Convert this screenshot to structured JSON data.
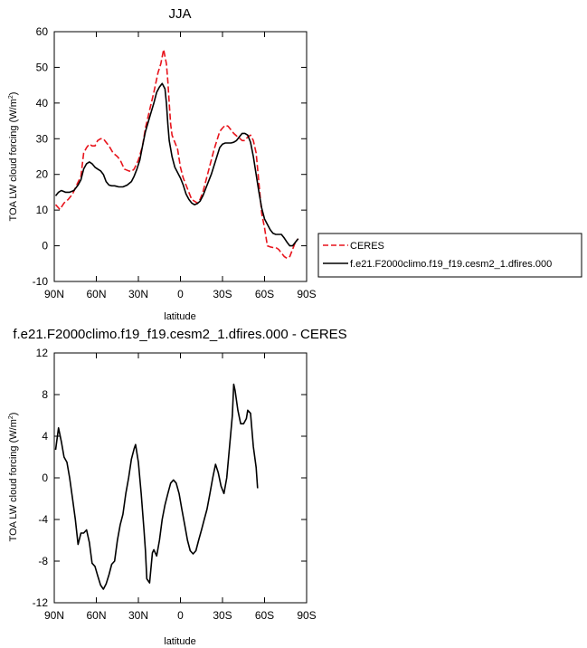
{
  "chart_data": [
    {
      "type": "line",
      "title": "JJA",
      "xlabel": "latitude",
      "ylabel": "TOA LW cloud forcing (W/m",
      "ylabel_sup": "2",
      "ylabel_close": ")",
      "xlim": [
        -90,
        90
      ],
      "ylim": [
        -10,
        60
      ],
      "x_ticks": [
        -90,
        -60,
        -30,
        0,
        30,
        60,
        90
      ],
      "x_tick_labels": [
        "90N",
        "60N",
        "30N",
        "0",
        "30S",
        "60S",
        "90S"
      ],
      "y_ticks": [
        -10,
        0,
        10,
        20,
        30,
        40,
        50,
        60
      ],
      "y_tick_labels": [
        "-10",
        "0",
        "10",
        "20",
        "30",
        "40",
        "50",
        "60"
      ],
      "grid": false,
      "legend_position": "right",
      "series": [
        {
          "name": "CERES",
          "color": "#e8141c",
          "dash": true,
          "points": [
            [
              -89,
              11.5
            ],
            [
              -86,
              10.2
            ],
            [
              -83,
              12
            ],
            [
              -80,
              13
            ],
            [
              -77,
              14.5
            ],
            [
              -74,
              17
            ],
            [
              -71,
              19.5
            ],
            [
              -69,
              26
            ],
            [
              -67,
              27.5
            ],
            [
              -65,
              28.5
            ],
            [
              -63,
              28
            ],
            [
              -61,
              28
            ],
            [
              -59,
              29.5
            ],
            [
              -57,
              30
            ],
            [
              -55,
              30
            ],
            [
              -53,
              29
            ],
            [
              -51,
              28
            ],
            [
              -48,
              26
            ],
            [
              -45,
              25
            ],
            [
              -43,
              24
            ],
            [
              -40,
              21.5
            ],
            [
              -37,
              21
            ],
            [
              -35,
              20.8
            ],
            [
              -33,
              21.5
            ],
            [
              -30,
              24
            ],
            [
              -27,
              28
            ],
            [
              -25,
              33
            ],
            [
              -22,
              38
            ],
            [
              -19,
              43
            ],
            [
              -16,
              48.5
            ],
            [
              -14,
              51
            ],
            [
              -12,
              55
            ],
            [
              -10,
              51
            ],
            [
              -9,
              46
            ],
            [
              -8,
              40
            ],
            [
              -7,
              34
            ],
            [
              -6,
              31
            ],
            [
              -4,
              29
            ],
            [
              -2,
              27
            ],
            [
              0,
              22
            ],
            [
              2,
              19
            ],
            [
              4,
              17
            ],
            [
              6,
              15
            ],
            [
              8,
              13
            ],
            [
              10,
              12.5
            ],
            [
              12,
              12
            ],
            [
              14,
              13
            ],
            [
              16,
              15
            ],
            [
              18,
              18
            ],
            [
              20,
              21
            ],
            [
              22,
              24
            ],
            [
              24,
              27
            ],
            [
              26,
              29.5
            ],
            [
              28,
              32
            ],
            [
              30,
              33
            ],
            [
              32,
              33.8
            ],
            [
              34,
              33.5
            ],
            [
              36,
              32.5
            ],
            [
              38,
              31.5
            ],
            [
              40,
              30.8
            ],
            [
              42,
              30.2
            ],
            [
              44,
              29.5
            ],
            [
              46,
              29.5
            ],
            [
              48,
              30.5
            ],
            [
              50,
              31
            ],
            [
              52,
              29.5
            ],
            [
              54,
              26
            ],
            [
              56,
              17.5
            ],
            [
              58,
              9
            ],
            [
              60,
              5
            ],
            [
              62,
              0
            ],
            [
              64,
              -0.3
            ],
            [
              66,
              -0.5
            ],
            [
              68,
              -0.5
            ],
            [
              70,
              -1
            ],
            [
              72,
              -2
            ],
            [
              74,
              -3
            ],
            [
              76,
              -3.5
            ],
            [
              78,
              -3
            ],
            [
              80,
              -1
            ],
            [
              82,
              1
            ],
            [
              84,
              2
            ]
          ]
        },
        {
          "name": "f.e21.F2000climo.f19_f19.cesm2_1.dfires.000",
          "color": "#000000",
          "dash": false,
          "points": [
            [
              -89,
              14
            ],
            [
              -87,
              15
            ],
            [
              -85,
              15.5
            ],
            [
              -82,
              15
            ],
            [
              -79,
              15
            ],
            [
              -76,
              15.5
            ],
            [
              -73,
              17
            ],
            [
              -71,
              18.5
            ],
            [
              -69,
              21.5
            ],
            [
              -67,
              23
            ],
            [
              -65,
              23.5
            ],
            [
              -63,
              23
            ],
            [
              -61,
              22
            ],
            [
              -59,
              21.5
            ],
            [
              -57,
              21
            ],
            [
              -55,
              20
            ],
            [
              -53,
              18
            ],
            [
              -51,
              17
            ],
            [
              -49,
              16.8
            ],
            [
              -47,
              16.8
            ],
            [
              -44,
              16.5
            ],
            [
              -41,
              16.5
            ],
            [
              -38,
              17
            ],
            [
              -35,
              18
            ],
            [
              -33,
              19.5
            ],
            [
              -31,
              21.5
            ],
            [
              -29,
              24
            ],
            [
              -27,
              28
            ],
            [
              -25,
              32
            ],
            [
              -22,
              36
            ],
            [
              -19,
              40
            ],
            [
              -17,
              43
            ],
            [
              -15,
              44.5
            ],
            [
              -13,
              45.5
            ],
            [
              -11,
              44
            ],
            [
              -10,
              40
            ],
            [
              -9,
              34
            ],
            [
              -8,
              29.5
            ],
            [
              -6,
              25
            ],
            [
              -4,
              22
            ],
            [
              -2,
              20.5
            ],
            [
              0,
              19
            ],
            [
              2,
              17
            ],
            [
              4,
              14.5
            ],
            [
              6,
              13
            ],
            [
              8,
              12
            ],
            [
              10,
              11.5
            ],
            [
              12,
              11.8
            ],
            [
              14,
              12.5
            ],
            [
              16,
              14
            ],
            [
              18,
              16
            ],
            [
              20,
              18
            ],
            [
              22,
              20
            ],
            [
              24,
              22.5
            ],
            [
              26,
              25
            ],
            [
              28,
              27.5
            ],
            [
              30,
              28.5
            ],
            [
              32,
              28.8
            ],
            [
              34,
              28.8
            ],
            [
              36,
              28.8
            ],
            [
              38,
              29
            ],
            [
              40,
              29.5
            ],
            [
              42,
              30.5
            ],
            [
              44,
              31.5
            ],
            [
              46,
              31.5
            ],
            [
              48,
              31
            ],
            [
              50,
              29
            ],
            [
              52,
              25
            ],
            [
              54,
              20
            ],
            [
              56,
              15
            ],
            [
              58,
              10.5
            ],
            [
              60,
              7.5
            ],
            [
              62,
              6
            ],
            [
              64,
              4.5
            ],
            [
              66,
              3.5
            ],
            [
              68,
              3.2
            ],
            [
              70,
              3.2
            ],
            [
              72,
              3.2
            ],
            [
              74,
              2.2
            ],
            [
              76,
              1
            ],
            [
              78,
              0
            ],
            [
              80,
              0
            ],
            [
              82,
              1
            ],
            [
              84,
              2
            ]
          ]
        }
      ],
      "legend": {
        "entries": [
          "CERES",
          "f.e21.F2000climo.f19_f19.cesm2_1.dfires.000"
        ]
      }
    },
    {
      "type": "line",
      "title": "f.e21.F2000climo.f19_f19.cesm2_1.dfires.000 - CERES",
      "xlabel": "latitude",
      "ylabel": "TOA LW cloud forcing (W/m",
      "ylabel_sup": "2",
      "ylabel_close": ")",
      "xlim": [
        -90,
        90
      ],
      "ylim": [
        -12,
        12
      ],
      "x_ticks": [
        -90,
        -60,
        -30,
        0,
        30,
        60,
        90
      ],
      "x_tick_labels": [
        "90N",
        "60N",
        "30N",
        "0",
        "30S",
        "60S",
        "90S"
      ],
      "y_ticks": [
        -12,
        -8,
        -4,
        0,
        4,
        8,
        12
      ],
      "y_tick_labels": [
        "-12",
        "-8",
        "-4",
        "0",
        "4",
        "8",
        "12"
      ],
      "grid": false,
      "series": [
        {
          "name": "",
          "color": "#000000",
          "dash": false,
          "points": [
            [
              -89,
              2.7
            ],
            [
              -87,
              4.8
            ],
            [
              -85,
              3.5
            ],
            [
              -83,
              2
            ],
            [
              -81,
              1.5
            ],
            [
              -79,
              0
            ],
            [
              -77,
              -2
            ],
            [
              -75,
              -4
            ],
            [
              -73,
              -6.4
            ],
            [
              -71,
              -5.3
            ],
            [
              -69,
              -5.3
            ],
            [
              -67,
              -5
            ],
            [
              -65,
              -6.2
            ],
            [
              -63,
              -8.2
            ],
            [
              -61,
              -8.5
            ],
            [
              -59,
              -9.4
            ],
            [
              -57,
              -10.3
            ],
            [
              -55,
              -10.7
            ],
            [
              -53,
              -10.2
            ],
            [
              -51,
              -9.3
            ],
            [
              -49,
              -8.3
            ],
            [
              -47,
              -8
            ],
            [
              -45,
              -6
            ],
            [
              -43,
              -4.5
            ],
            [
              -41,
              -3.5
            ],
            [
              -39,
              -1.5
            ],
            [
              -37,
              0
            ],
            [
              -35,
              1.8
            ],
            [
              -33,
              2.8
            ],
            [
              -32,
              3.2
            ],
            [
              -30,
              1.5
            ],
            [
              -28,
              -1.5
            ],
            [
              -26,
              -5
            ],
            [
              -25,
              -7
            ],
            [
              -24,
              -9.7
            ],
            [
              -22,
              -10.1
            ],
            [
              -20,
              -7.2
            ],
            [
              -19,
              -6.9
            ],
            [
              -17,
              -7.5
            ],
            [
              -15,
              -6
            ],
            [
              -13,
              -4
            ],
            [
              -11,
              -2.6
            ],
            [
              -9,
              -1.5
            ],
            [
              -7,
              -0.5
            ],
            [
              -5,
              -0.2
            ],
            [
              -3,
              -0.5
            ],
            [
              -1,
              -1.5
            ],
            [
              1,
              -3
            ],
            [
              3,
              -4.5
            ],
            [
              5,
              -6
            ],
            [
              7,
              -7
            ],
            [
              9,
              -7.3
            ],
            [
              11,
              -7
            ],
            [
              13,
              -6
            ],
            [
              15,
              -5
            ],
            [
              17,
              -4
            ],
            [
              19,
              -3
            ],
            [
              21,
              -1.5
            ],
            [
              23,
              0
            ],
            [
              25,
              1.3
            ],
            [
              27,
              0.5
            ],
            [
              29,
              -0.8
            ],
            [
              31,
              -1.5
            ],
            [
              33,
              0
            ],
            [
              35,
              3
            ],
            [
              37,
              6
            ],
            [
              38,
              9
            ],
            [
              39,
              8.4
            ],
            [
              41,
              6.5
            ],
            [
              43,
              5.2
            ],
            [
              45,
              5.2
            ],
            [
              47,
              5.7
            ],
            [
              48,
              6.5
            ],
            [
              50,
              6.2
            ],
            [
              52,
              3
            ],
            [
              54,
              1
            ],
            [
              55,
              -1
            ]
          ]
        }
      ]
    }
  ]
}
